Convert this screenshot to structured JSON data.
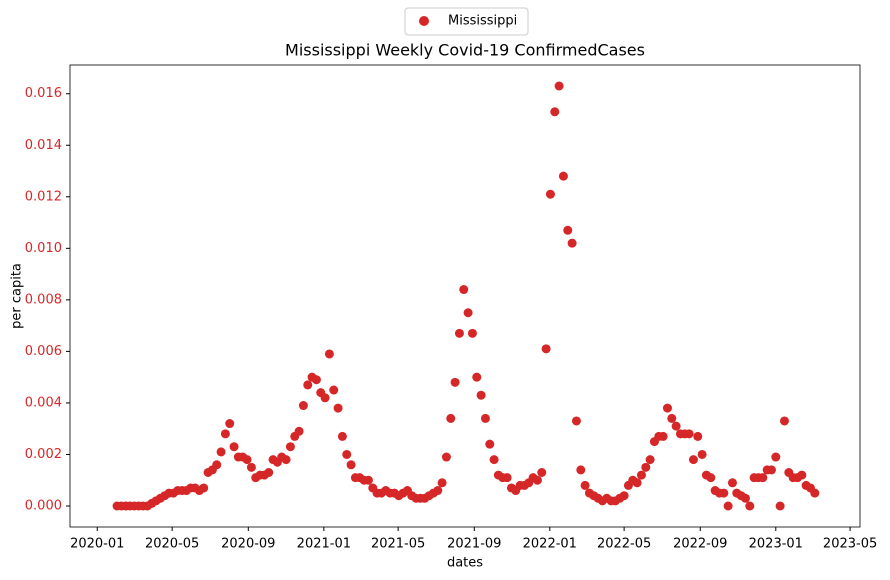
{
  "chart_data": {
    "type": "scatter",
    "title": "Mississippi Weekly Covid-19 ConfirmedCases",
    "x_label": "dates",
    "y_label": "per capita",
    "legend": "upper center outside",
    "tick_label_color": "#d62728",
    "x": [
      "2020-02-02",
      "2020-02-09",
      "2020-02-16",
      "2020-02-23",
      "2020-03-01",
      "2020-03-08",
      "2020-03-15",
      "2020-03-22",
      "2020-03-29",
      "2020-04-05",
      "2020-04-12",
      "2020-04-19",
      "2020-04-26",
      "2020-05-03",
      "2020-05-10",
      "2020-05-17",
      "2020-05-24",
      "2020-05-31",
      "2020-06-07",
      "2020-06-14",
      "2020-06-21",
      "2020-06-28",
      "2020-07-05",
      "2020-07-12",
      "2020-07-19",
      "2020-07-26",
      "2020-08-02",
      "2020-08-09",
      "2020-08-16",
      "2020-08-23",
      "2020-08-30",
      "2020-09-06",
      "2020-09-13",
      "2020-09-20",
      "2020-09-27",
      "2020-10-04",
      "2020-10-11",
      "2020-10-18",
      "2020-10-25",
      "2020-11-01",
      "2020-11-08",
      "2020-11-15",
      "2020-11-22",
      "2020-11-29",
      "2020-12-06",
      "2020-12-13",
      "2020-12-20",
      "2020-12-27",
      "2021-01-03",
      "2021-01-10",
      "2021-01-17",
      "2021-01-24",
      "2021-01-31",
      "2021-02-07",
      "2021-02-14",
      "2021-02-21",
      "2021-02-28",
      "2021-03-07",
      "2021-03-14",
      "2021-03-21",
      "2021-03-28",
      "2021-04-04",
      "2021-04-11",
      "2021-04-18",
      "2021-04-25",
      "2021-05-02",
      "2021-05-09",
      "2021-05-16",
      "2021-05-23",
      "2021-05-30",
      "2021-06-06",
      "2021-06-13",
      "2021-06-20",
      "2021-06-27",
      "2021-07-04",
      "2021-07-11",
      "2021-07-18",
      "2021-07-25",
      "2021-08-01",
      "2021-08-08",
      "2021-08-15",
      "2021-08-22",
      "2021-08-29",
      "2021-09-05",
      "2021-09-12",
      "2021-09-19",
      "2021-09-26",
      "2021-10-03",
      "2021-10-10",
      "2021-10-17",
      "2021-10-24",
      "2021-10-31",
      "2021-11-07",
      "2021-11-14",
      "2021-11-21",
      "2021-11-28",
      "2021-12-05",
      "2021-12-12",
      "2021-12-19",
      "2021-12-26",
      "2022-01-02",
      "2022-01-09",
      "2022-01-16",
      "2022-01-23",
      "2022-01-30",
      "2022-02-06",
      "2022-02-13",
      "2022-02-20",
      "2022-02-27",
      "2022-03-06",
      "2022-03-13",
      "2022-03-20",
      "2022-03-27",
      "2022-04-03",
      "2022-04-10",
      "2022-04-17",
      "2022-04-24",
      "2022-05-01",
      "2022-05-08",
      "2022-05-15",
      "2022-05-22",
      "2022-05-29",
      "2022-06-05",
      "2022-06-12",
      "2022-06-19",
      "2022-06-26",
      "2022-07-03",
      "2022-07-10",
      "2022-07-17",
      "2022-07-24",
      "2022-07-31",
      "2022-08-07",
      "2022-08-14",
      "2022-08-21",
      "2022-08-28",
      "2022-09-04",
      "2022-09-11",
      "2022-09-18",
      "2022-09-25",
      "2022-10-02",
      "2022-10-09",
      "2022-10-16",
      "2022-10-23",
      "2022-10-30",
      "2022-11-06",
      "2022-11-13",
      "2022-11-20",
      "2022-11-27",
      "2022-12-04",
      "2022-12-11",
      "2022-12-18",
      "2022-12-25",
      "2023-01-01",
      "2023-01-08",
      "2023-01-15",
      "2023-01-22",
      "2023-01-29",
      "2023-02-05",
      "2023-02-12",
      "2023-02-19",
      "2023-02-26",
      "2023-03-05"
    ],
    "series": [
      {
        "name": "Mississippi",
        "color": "#d62728",
        "values": [
          0,
          0,
          0,
          0,
          0,
          0,
          0,
          0,
          0.0001,
          0.0002,
          0.0003,
          0.0004,
          0.0005,
          0.0005,
          0.0006,
          0.0006,
          0.0006,
          0.0007,
          0.0007,
          0.0006,
          0.0007,
          0.0013,
          0.0014,
          0.0016,
          0.0021,
          0.0028,
          0.0032,
          0.0023,
          0.0019,
          0.0019,
          0.0018,
          0.0015,
          0.0011,
          0.0012,
          0.0012,
          0.0013,
          0.0018,
          0.0017,
          0.0019,
          0.0018,
          0.0023,
          0.0027,
          0.0029,
          0.0039,
          0.0047,
          0.005,
          0.0049,
          0.0044,
          0.0042,
          0.0059,
          0.0045,
          0.0038,
          0.0027,
          0.002,
          0.0016,
          0.0011,
          0.0011,
          0.001,
          0.001,
          0.0007,
          0.0005,
          0.0005,
          0.0006,
          0.0005,
          0.0005,
          0.0004,
          0.0005,
          0.0006,
          0.0004,
          0.0003,
          0.0003,
          0.0003,
          0.0004,
          0.0005,
          0.0006,
          0.0009,
          0.0019,
          0.0034,
          0.0048,
          0.0067,
          0.0084,
          0.0075,
          0.0067,
          0.005,
          0.0043,
          0.0034,
          0.0024,
          0.0018,
          0.0012,
          0.0011,
          0.0011,
          0.0007,
          0.0006,
          0.0008,
          0.0008,
          0.0009,
          0.0011,
          0.001,
          0.0013,
          0.0061,
          0.0121,
          0.0153,
          0.0163,
          0.0128,
          0.0107,
          0.0102,
          0.0033,
          0.0014,
          0.0008,
          0.0005,
          0.0004,
          0.0003,
          0.0002,
          0.0003,
          0.0002,
          0.0002,
          0.0003,
          0.0004,
          0.0008,
          0.001,
          0.0009,
          0.0012,
          0.0015,
          0.0018,
          0.0025,
          0.0027,
          0.0027,
          0.0038,
          0.0034,
          0.0031,
          0.0028,
          0.0028,
          0.0028,
          0.0018,
          0.0027,
          0.002,
          0.0012,
          0.0011,
          0.0006,
          0.0005,
          0.0005,
          0,
          0.0009,
          0.0005,
          0.0004,
          0.0003,
          0,
          0.0011,
          0.0011,
          0.0011,
          0.0014,
          0.0014,
          0.0019,
          0,
          0.0033,
          0.0013,
          0.0011,
          0.0011,
          0.0012,
          0.0008,
          0.0007,
          0.0005
        ]
      }
    ],
    "xlim": [
      "2019-11-18",
      "2023-05-17"
    ],
    "xticks": [
      "2020-01",
      "2020-05",
      "2020-09",
      "2021-01",
      "2021-05",
      "2021-09",
      "2022-01",
      "2022-05",
      "2022-09",
      "2023-01",
      "2023-05"
    ],
    "ylim": [
      -0.000815,
      0.017115
    ],
    "yticks": [
      {
        "value": 0,
        "label": "0.000"
      },
      {
        "value": 0.002,
        "label": "0.002"
      },
      {
        "value": 0.004,
        "label": "0.004"
      },
      {
        "value": 0.006,
        "label": "0.006"
      },
      {
        "value": 0.008,
        "label": "0.008"
      },
      {
        "value": 0.01,
        "label": "0.010"
      },
      {
        "value": 0.012,
        "label": "0.012"
      },
      {
        "value": 0.014,
        "label": "0.014"
      },
      {
        "value": 0.016,
        "label": "0.016"
      }
    ],
    "grid": false
  }
}
